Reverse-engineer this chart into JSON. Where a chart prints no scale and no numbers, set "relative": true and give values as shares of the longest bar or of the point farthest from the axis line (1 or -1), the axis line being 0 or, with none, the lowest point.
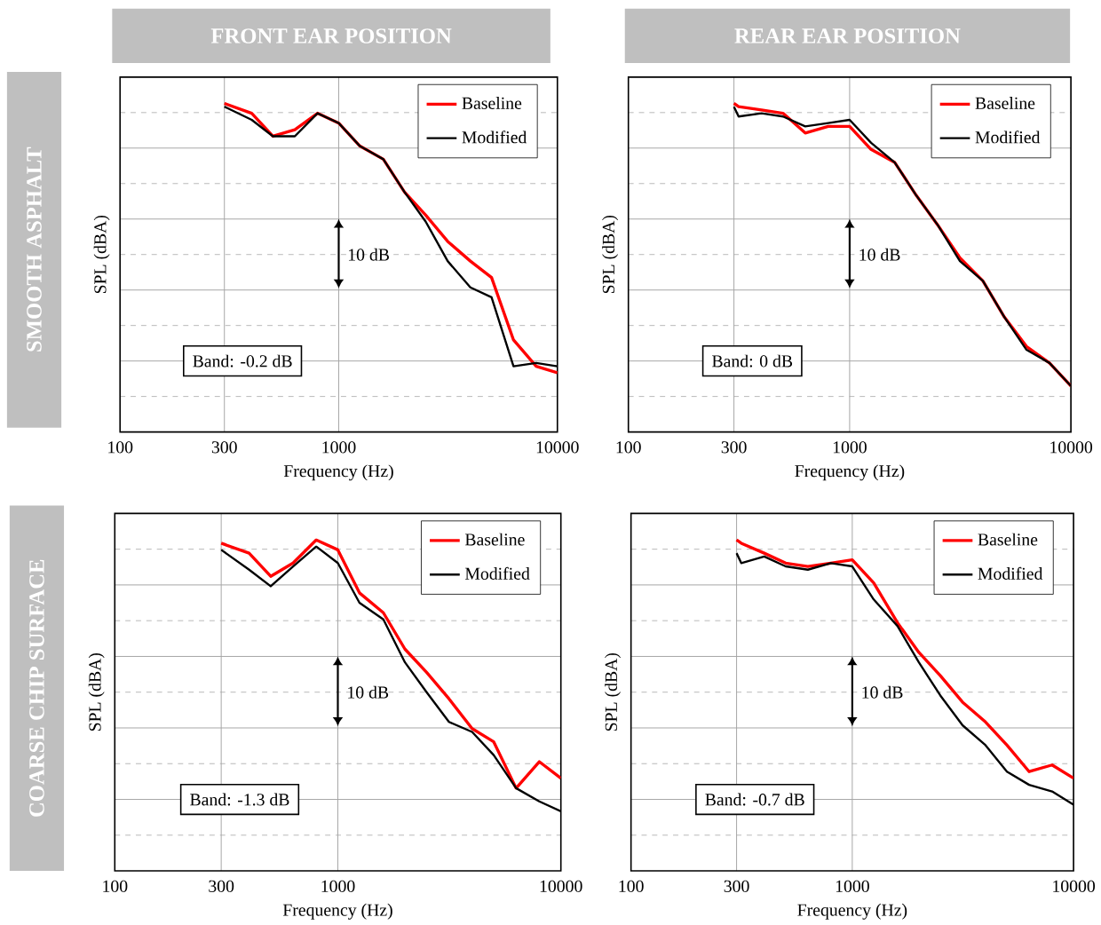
{
  "chart_data": [
    {
      "type": "line",
      "title": "FRONT EAR POSITION",
      "subtitle": "SMOOTH ASPHALT",
      "xlabel": "Frequency (Hz)",
      "ylabel": "SPL (dBA)",
      "relative": true,
      "log": "x",
      "xlim": [
        100,
        10000
      ],
      "xticks": [
        100,
        300,
        1000,
        10000
      ],
      "grid": true,
      "legend": "top right",
      "x": [
        300,
        400,
        500,
        630,
        800,
        1000,
        1250,
        1600,
        2000,
        2500,
        3150,
        4000,
        5000,
        6300,
        8000,
        10000
      ],
      "series": [
        {
          "name": "Baseline",
          "color": "#ff0000",
          "values": [
            1.0,
            0.97,
            0.9,
            0.92,
            0.97,
            0.94,
            0.87,
            0.83,
            0.73,
            0.66,
            0.58,
            0.52,
            0.47,
            0.28,
            0.2,
            0.18
          ]
        },
        {
          "name": "Modified",
          "color": "#000000",
          "values": [
            0.99,
            0.95,
            0.9,
            0.9,
            0.97,
            0.94,
            0.87,
            0.83,
            0.73,
            0.64,
            0.52,
            0.44,
            0.41,
            0.2,
            0.21,
            0.2
          ]
        }
      ],
      "annotations": [
        "10 dB",
        "Band: -0.2 dB"
      ]
    },
    {
      "type": "line",
      "title": "REAR EAR POSITION",
      "xlabel": "Frequency (Hz)",
      "ylabel": "SPL (dBA)",
      "relative": true,
      "log": "x",
      "xlim": [
        100,
        10000
      ],
      "xticks": [
        100,
        300,
        1000,
        10000
      ],
      "grid": true,
      "legend": "top right",
      "x": [
        300,
        315,
        400,
        500,
        630,
        800,
        1000,
        1250,
        1600,
        2000,
        2500,
        3150,
        4000,
        5000,
        6300,
        8000,
        10000
      ],
      "series": [
        {
          "name": "Baseline",
          "color": "#ff0000",
          "values": [
            1.0,
            0.99,
            0.98,
            0.97,
            0.91,
            0.93,
            0.93,
            0.86,
            0.82,
            0.72,
            0.63,
            0.53,
            0.46,
            0.35,
            0.26,
            0.21,
            0.14
          ]
        },
        {
          "name": "Modified",
          "color": "#000000",
          "values": [
            0.99,
            0.96,
            0.97,
            0.96,
            0.93,
            0.94,
            0.95,
            0.88,
            0.82,
            0.72,
            0.63,
            0.52,
            0.46,
            0.35,
            0.25,
            0.21,
            0.14
          ]
        }
      ],
      "annotations": [
        "10 dB",
        "Band: 0 dB"
      ]
    },
    {
      "type": "line",
      "subtitle": "COARSE CHIP SURFACE",
      "xlabel": "Frequency (Hz)",
      "ylabel": "SPL (dBA)",
      "relative": true,
      "log": "x",
      "xlim": [
        100,
        10000
      ],
      "xticks": [
        100,
        300,
        1000,
        10000
      ],
      "grid": true,
      "legend": "top right",
      "x": [
        300,
        400,
        500,
        630,
        800,
        1000,
        1250,
        1600,
        2000,
        2500,
        3150,
        4000,
        5000,
        6300,
        8000,
        10000
      ],
      "series": [
        {
          "name": "Baseline",
          "color": "#ff0000",
          "values": [
            0.99,
            0.96,
            0.89,
            0.93,
            1.0,
            0.97,
            0.84,
            0.78,
            0.67,
            0.6,
            0.52,
            0.43,
            0.39,
            0.25,
            0.33,
            0.28
          ]
        },
        {
          "name": "Modified",
          "color": "#000000",
          "values": [
            0.97,
            0.91,
            0.86,
            0.92,
            0.98,
            0.93,
            0.81,
            0.76,
            0.63,
            0.54,
            0.45,
            0.42,
            0.35,
            0.25,
            0.21,
            0.18
          ]
        }
      ],
      "annotations": [
        "10 dB",
        "Band: -1.3 dB"
      ]
    },
    {
      "type": "line",
      "xlabel": "Frequency (Hz)",
      "ylabel": "SPL (dBA)",
      "relative": true,
      "log": "x",
      "xlim": [
        100,
        10000
      ],
      "xticks": [
        100,
        300,
        1000,
        10000
      ],
      "grid": true,
      "legend": "top right",
      "x": [
        300,
        315,
        400,
        500,
        630,
        800,
        1000,
        1250,
        1600,
        2000,
        2500,
        3150,
        4000,
        5000,
        6300,
        8000,
        10000
      ],
      "series": [
        {
          "name": "Baseline",
          "color": "#ff0000",
          "values": [
            1.0,
            0.99,
            0.96,
            0.93,
            0.92,
            0.93,
            0.94,
            0.87,
            0.75,
            0.66,
            0.59,
            0.51,
            0.45,
            0.38,
            0.3,
            0.32,
            0.28
          ]
        },
        {
          "name": "Modified",
          "color": "#000000",
          "values": [
            0.96,
            0.93,
            0.95,
            0.92,
            0.91,
            0.93,
            0.92,
            0.82,
            0.74,
            0.63,
            0.53,
            0.44,
            0.38,
            0.3,
            0.26,
            0.24,
            0.2
          ]
        }
      ],
      "annotations": [
        "10 dB",
        "Band: -0.7 dB"
      ]
    }
  ]
}
